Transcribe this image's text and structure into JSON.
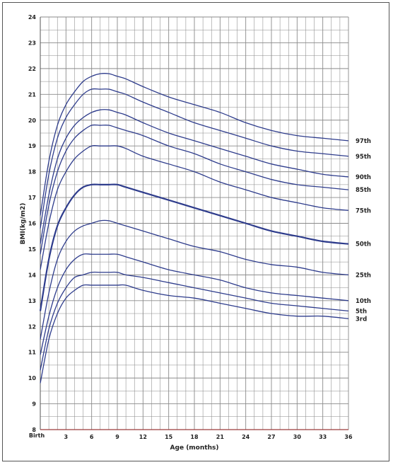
{
  "chart_data": {
    "type": "line",
    "xlabel": "Age (months)",
    "ylabel": "BMI(kg/m2)",
    "xlim": [
      0,
      36
    ],
    "ylim": [
      8,
      24
    ],
    "xticks": [
      0,
      3,
      6,
      9,
      12,
      15,
      18,
      21,
      24,
      27,
      30,
      33,
      36
    ],
    "xtick_labels": [
      "Birth",
      "3",
      "6",
      "9",
      "12",
      "15",
      "18",
      "21",
      "24",
      "27",
      "30",
      "33",
      "36"
    ],
    "yticks": [
      8,
      9,
      10,
      11,
      12,
      13,
      14,
      15,
      16,
      17,
      18,
      19,
      20,
      21,
      22,
      23,
      24
    ],
    "grid": true,
    "x": [
      0,
      1,
      2,
      3,
      4,
      5,
      6,
      7,
      8,
      9,
      10,
      12,
      15,
      18,
      21,
      24,
      27,
      30,
      33,
      36
    ],
    "series": [
      {
        "name": "97th",
        "values": [
          16.3,
          18.4,
          19.8,
          20.6,
          21.1,
          21.5,
          21.7,
          21.8,
          21.8,
          21.7,
          21.6,
          21.3,
          20.9,
          20.6,
          20.3,
          19.9,
          19.6,
          19.4,
          19.3,
          19.2
        ]
      },
      {
        "name": "95th",
        "values": [
          15.8,
          17.9,
          19.3,
          20.1,
          20.6,
          21.0,
          21.2,
          21.2,
          21.2,
          21.1,
          21.0,
          20.7,
          20.3,
          19.9,
          19.6,
          19.3,
          19.0,
          18.8,
          18.7,
          18.6
        ]
      },
      {
        "name": "90th",
        "values": [
          15.2,
          17.1,
          18.5,
          19.3,
          19.8,
          20.1,
          20.3,
          20.4,
          20.4,
          20.3,
          20.2,
          19.9,
          19.5,
          19.2,
          18.9,
          18.6,
          18.3,
          18.1,
          17.9,
          17.8
        ]
      },
      {
        "name": "85th",
        "values": [
          14.8,
          16.7,
          18.0,
          18.8,
          19.3,
          19.6,
          19.8,
          19.8,
          19.8,
          19.7,
          19.6,
          19.4,
          19.0,
          18.7,
          18.3,
          18.0,
          17.7,
          17.5,
          17.4,
          17.3
        ]
      },
      {
        "name": "75th",
        "values": [
          14.2,
          16.0,
          17.3,
          18.0,
          18.5,
          18.8,
          19.0,
          19.0,
          19.0,
          19.0,
          18.9,
          18.6,
          18.3,
          18.0,
          17.6,
          17.3,
          17.0,
          16.8,
          16.6,
          16.5
        ]
      },
      {
        "name": "50th",
        "values": [
          12.6,
          14.6,
          15.9,
          16.6,
          17.1,
          17.4,
          17.5,
          17.5,
          17.5,
          17.5,
          17.4,
          17.2,
          16.9,
          16.6,
          16.3,
          16.0,
          15.7,
          15.5,
          15.3,
          15.2
        ]
      },
      {
        "name": "25th",
        "values": [
          11.5,
          13.3,
          14.6,
          15.3,
          15.7,
          15.9,
          16.0,
          16.1,
          16.1,
          16.0,
          15.9,
          15.7,
          15.4,
          15.1,
          14.9,
          14.6,
          14.4,
          14.3,
          14.1,
          14.0
        ]
      },
      {
        "name": "10th",
        "values": [
          10.9,
          12.4,
          13.5,
          14.2,
          14.6,
          14.8,
          14.8,
          14.8,
          14.8,
          14.8,
          14.7,
          14.5,
          14.2,
          14.0,
          13.8,
          13.5,
          13.3,
          13.2,
          13.1,
          13.0
        ]
      },
      {
        "name": "5th",
        "values": [
          10.3,
          11.9,
          12.9,
          13.5,
          13.9,
          14.0,
          14.1,
          14.1,
          14.1,
          14.1,
          14.0,
          13.9,
          13.7,
          13.5,
          13.3,
          13.1,
          12.9,
          12.8,
          12.7,
          12.6
        ]
      },
      {
        "name": "3rd",
        "values": [
          9.8,
          11.5,
          12.5,
          13.1,
          13.4,
          13.6,
          13.6,
          13.6,
          13.6,
          13.6,
          13.6,
          13.4,
          13.2,
          13.1,
          12.9,
          12.7,
          12.5,
          12.4,
          12.4,
          12.3
        ]
      }
    ]
  },
  "colors": {
    "line": "#2e3c8c",
    "grid": "#8a8a8a",
    "axis": "#9a3b3b",
    "text": "#222222"
  }
}
